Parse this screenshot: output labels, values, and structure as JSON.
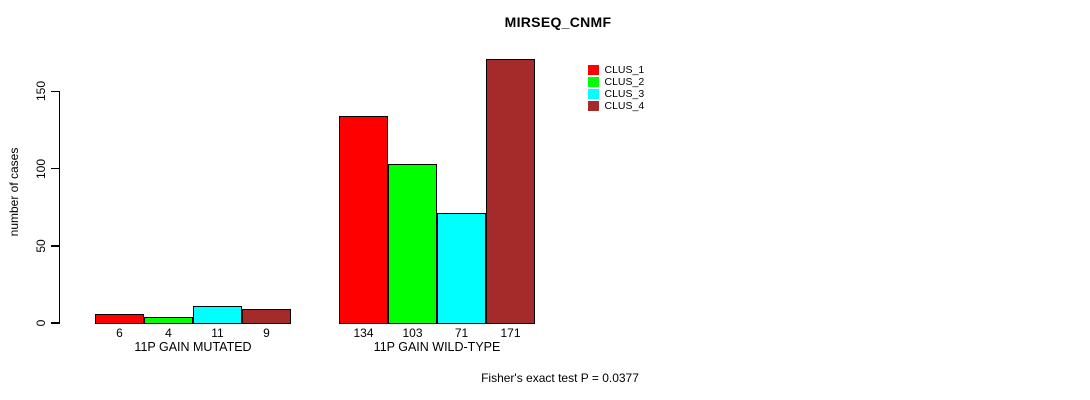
{
  "chart_data": {
    "type": "bar",
    "title": "MIRSEQ_CNMF",
    "ylabel": "number of cases",
    "xlabel": "",
    "categories": [
      "11P GAIN MUTATED",
      "11P GAIN WILD-TYPE"
    ],
    "series": [
      {
        "name": "CLUS_1",
        "color": "#ff0000",
        "values": [
          6,
          134
        ]
      },
      {
        "name": "CLUS_2",
        "color": "#00ff00",
        "values": [
          4,
          103
        ]
      },
      {
        "name": "CLUS_3",
        "color": "#00ffff",
        "values": [
          11,
          71
        ]
      },
      {
        "name": "CLUS_4",
        "color": "#a52a2a",
        "values": [
          9,
          171
        ]
      }
    ],
    "yticks": [
      0,
      50,
      100,
      150
    ],
    "ylim": [
      0,
      175
    ],
    "grid": false,
    "legend_position": "upper-right",
    "bar_value_labels_shown": true,
    "annotation": "Fisher's exact test P = 0.0377"
  },
  "colors": {
    "clus_1": "#ff0000",
    "clus_2": "#00ff00",
    "clus_3": "#00ffff",
    "clus_4": "#a52a2a",
    "axis": "#000000",
    "background": "#ffffff"
  }
}
